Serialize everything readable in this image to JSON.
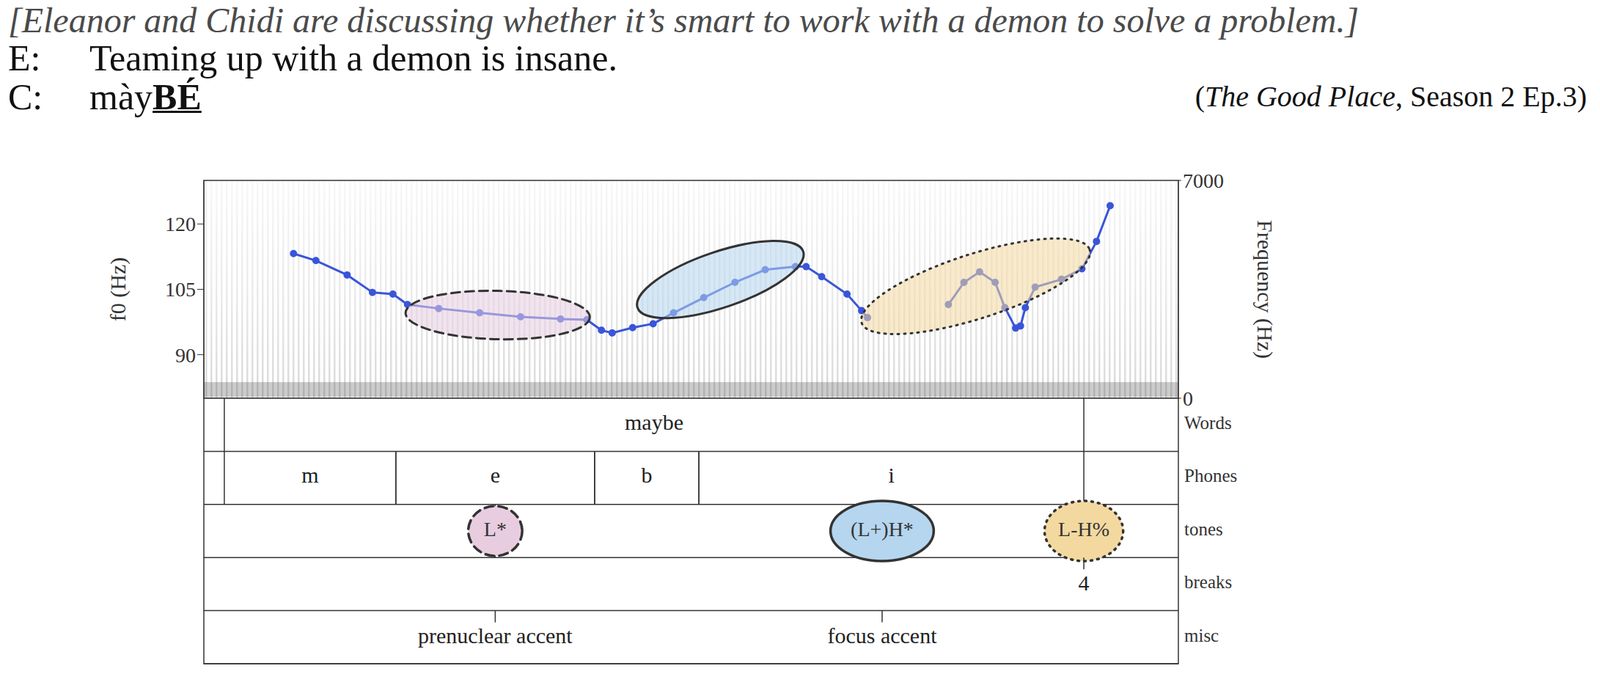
{
  "context": "[Eleanor and Chidi are discussing whether it’s smart to work with a demon to solve a problem.]",
  "dialogue": [
    {
      "speaker": "E:",
      "parts": [
        {
          "text": "Teaming up with a demon is insane."
        }
      ]
    },
    {
      "speaker": "C:",
      "parts": [
        {
          "text": "mày"
        },
        {
          "text": "BÉ",
          "bold": true,
          "underline": true
        }
      ]
    }
  ],
  "source": {
    "open": "(",
    "title": "The Good Place",
    "rest": ", Season 2 Ep.3)"
  },
  "chart_data": {
    "type": "line",
    "x": [
      0.092,
      0.115,
      0.147,
      0.173,
      0.194,
      0.209,
      0.241,
      0.283,
      0.325,
      0.366,
      0.393,
      0.408,
      0.419,
      0.44,
      0.461,
      0.482,
      0.513,
      0.545,
      0.576,
      0.607,
      0.618,
      0.634,
      0.66,
      0.675,
      0.681,
      0.72,
      0.764,
      0.78,
      0.796,
      0.812,
      0.822,
      0.833,
      0.838,
      0.843,
      0.853,
      0.88,
      0.901,
      0.916,
      0.93
    ],
    "values": [
      113.2,
      111.6,
      108.3,
      104.3,
      103.9,
      101.5,
      100.6,
      99.6,
      98.7,
      98.2,
      98.0,
      95.6,
      95.0,
      96.2,
      97.1,
      99.6,
      103.1,
      106.6,
      109.5,
      110.2,
      110.2,
      107.9,
      103.9,
      100.1,
      98.5,
      null,
      101.5,
      106.6,
      109.0,
      106.6,
      100.8,
      96.1,
      96.6,
      100.8,
      105.5,
      107.3,
      109.7,
      116.0,
      124.2
    ],
    "color": "#3a55d8",
    "marker": "circle",
    "xlim": [
      0,
      1
    ],
    "ylim": [
      80,
      130
    ],
    "yticks": [
      90,
      105,
      120
    ],
    "y_label": "f0 (Hz)",
    "y2lim": [
      0,
      7000
    ],
    "y2ticks": [
      0,
      7000
    ],
    "y2_label": "Frequency (Hz)",
    "tick_labels": "y"
  },
  "annotation": {
    "tiers": [
      {
        "name": "Words",
        "type": "interval",
        "intervals": [
          {
            "start": 0.021,
            "end": 0.903,
            "text": "maybe"
          }
        ]
      },
      {
        "name": "Phones",
        "type": "interval",
        "intervals": [
          {
            "start": 0.021,
            "end": 0.197,
            "text": "m"
          },
          {
            "start": 0.197,
            "end": 0.401,
            "text": "e"
          },
          {
            "start": 0.401,
            "end": 0.508,
            "text": "b"
          },
          {
            "start": 0.508,
            "end": 0.903,
            "text": "i"
          }
        ]
      },
      {
        "name": "tones",
        "type": "point",
        "points": [
          {
            "x": 0.299,
            "text": "L*",
            "color": "#e8cde0",
            "line_style": "dashed",
            "region": {
              "x": [
                0.207,
                0.396
              ],
              "y": [
                99.6,
                98.6
              ]
            }
          },
          {
            "x": 0.696,
            "text": "(L+)H*",
            "color": "#b5d6ee",
            "line_style": "solid",
            "region": {
              "x": [
                0.445,
                0.615
              ],
              "y": [
                100.8,
                113.7
              ]
            }
          },
          {
            "x": 0.903,
            "text": "L-H%",
            "color": "#f3d9a0",
            "line_style": "dotted",
            "region": {
              "x": [
                0.675,
                0.909
              ],
              "y": [
                97.3,
                114.1
              ]
            }
          }
        ]
      },
      {
        "name": "breaks",
        "type": "point",
        "points": [
          {
            "x": 0.903,
            "text": "4"
          }
        ]
      },
      {
        "name": "misc",
        "type": "point",
        "points": [
          {
            "x": 0.299,
            "text": "prenuclear accent"
          },
          {
            "x": 0.696,
            "text": "focus accent"
          }
        ]
      }
    ]
  }
}
